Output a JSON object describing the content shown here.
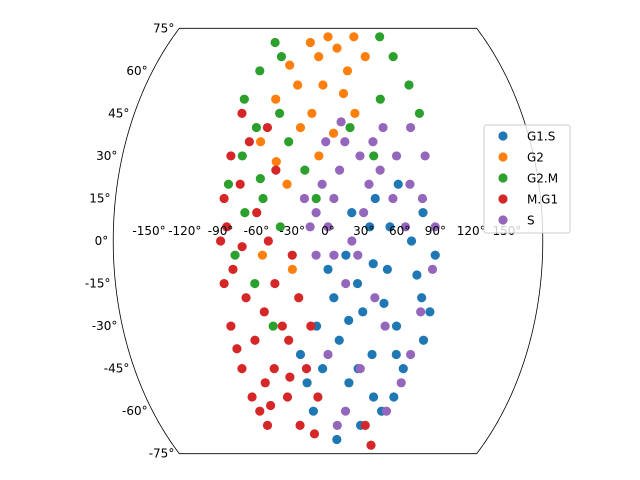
{
  "chart_data": {
    "type": "scatter",
    "projection": "kavrayskiy-vii",
    "title": "",
    "xlabel": "",
    "ylabel": "",
    "xlim": [
      -180,
      180
    ],
    "ylim": [
      -75,
      75
    ],
    "grid": false,
    "legend_position": "top-right",
    "x_tick_labels": [
      "-150°",
      "-120°",
      "-90°",
      "-60°",
      "-30°",
      "0°",
      "30°",
      "60°",
      "90°",
      "120°",
      "150°"
    ],
    "y_tick_labels": [
      "75°",
      "60°",
      "45°",
      "30°",
      "15°",
      "0°",
      "-15°",
      "-30°",
      "-45°",
      "-60°",
      "-75°"
    ],
    "series": [
      {
        "name": "G1.S",
        "color": "#1f77b4",
        "points": [
          [
            5,
            -20
          ],
          [
            10,
            -35
          ],
          [
            20,
            -50
          ],
          [
            30,
            -25
          ],
          [
            40,
            -40
          ],
          [
            50,
            -10
          ],
          [
            60,
            -30
          ],
          [
            70,
            -45
          ],
          [
            80,
            -20
          ],
          [
            85,
            -35
          ],
          [
            15,
            -5
          ],
          [
            25,
            -15
          ],
          [
            35,
            5
          ],
          [
            45,
            -55
          ],
          [
            55,
            -60
          ],
          [
            -5,
            -45
          ],
          [
            -15,
            -60
          ],
          [
            -25,
            -40
          ],
          [
            0,
            -10
          ],
          [
            20,
            10
          ],
          [
            40,
            15
          ],
          [
            60,
            20
          ],
          [
            70,
            0
          ],
          [
            80,
            10
          ],
          [
            90,
            -5
          ],
          [
            65,
            -55
          ],
          [
            35,
            -65
          ],
          [
            10,
            -70
          ],
          [
            -10,
            -30
          ],
          [
            28,
            -45
          ],
          [
            48,
            -22
          ],
          [
            75,
            -12
          ],
          [
            52,
            5
          ],
          [
            18,
            -28
          ],
          [
            -20,
            -50
          ],
          [
            62,
            -40
          ],
          [
            38,
            -8
          ],
          [
            88,
            -25
          ]
        ]
      },
      {
        "name": "G2",
        "color": "#ff7f0e",
        "points": [
          [
            -20,
            70
          ],
          [
            -10,
            65
          ],
          [
            0,
            72
          ],
          [
            10,
            68
          ],
          [
            20,
            60
          ],
          [
            -30,
            55
          ],
          [
            -40,
            62
          ],
          [
            -50,
            50
          ],
          [
            30,
            72
          ],
          [
            40,
            65
          ],
          [
            -15,
            45
          ],
          [
            -5,
            55
          ],
          [
            15,
            52
          ],
          [
            -25,
            40
          ],
          [
            5,
            38
          ],
          [
            -60,
            35
          ],
          [
            -45,
            28
          ],
          [
            -35,
            20
          ],
          [
            -55,
            -5
          ],
          [
            -30,
            -10
          ],
          [
            25,
            45
          ],
          [
            -8,
            30
          ]
        ]
      },
      {
        "name": "G2.M",
        "color": "#2ca02c",
        "points": [
          [
            -60,
            70
          ],
          [
            -70,
            60
          ],
          [
            -80,
            50
          ],
          [
            -65,
            40
          ],
          [
            -50,
            65
          ],
          [
            60,
            72
          ],
          [
            70,
            65
          ],
          [
            80,
            55
          ],
          [
            85,
            45
          ],
          [
            -75,
            30
          ],
          [
            -85,
            20
          ],
          [
            -70,
            10
          ],
          [
            -55,
            15
          ],
          [
            -40,
            5
          ],
          [
            -45,
            45
          ],
          [
            -35,
            35
          ],
          [
            -20,
            25
          ],
          [
            20,
            40
          ],
          [
            40,
            30
          ],
          [
            50,
            50
          ],
          [
            -10,
            15
          ],
          [
            -62,
            -15
          ],
          [
            -48,
            -30
          ],
          [
            -58,
            22
          ],
          [
            -78,
            -5
          ]
        ]
      },
      {
        "name": "M.G1",
        "color": "#d62728",
        "points": [
          [
            -90,
            0
          ],
          [
            -88,
            15
          ],
          [
            -88,
            -15
          ],
          [
            -85,
            30
          ],
          [
            -85,
            -30
          ],
          [
            -80,
            45
          ],
          [
            -80,
            -45
          ],
          [
            -75,
            -55
          ],
          [
            -70,
            -60
          ],
          [
            -65,
            -65
          ],
          [
            -85,
            5
          ],
          [
            -80,
            -10
          ],
          [
            -75,
            20
          ],
          [
            -70,
            -20
          ],
          [
            -65,
            -35
          ],
          [
            -60,
            -50
          ],
          [
            -55,
            -25
          ],
          [
            -50,
            -45
          ],
          [
            -45,
            -15
          ],
          [
            -40,
            -55
          ],
          [
            -35,
            -35
          ],
          [
            -30,
            -65
          ],
          [
            -25,
            -20
          ],
          [
            -20,
            -45
          ],
          [
            -15,
            -30
          ],
          [
            -10,
            -55
          ],
          [
            -60,
            10
          ],
          [
            -50,
            0
          ],
          [
            -55,
            40
          ],
          [
            -45,
            25
          ],
          [
            -70,
            35
          ],
          [
            -40,
            -30
          ],
          [
            -30,
            -5
          ],
          [
            40,
            -65
          ],
          [
            50,
            -72
          ],
          [
            -15,
            -68
          ],
          [
            -82,
            -38
          ],
          [
            -72,
            -2
          ],
          [
            -58,
            -58
          ],
          [
            -36,
            -48
          ]
        ]
      },
      {
        "name": "S",
        "color": "#9467bd",
        "points": [
          [
            0,
            5
          ],
          [
            5,
            15
          ],
          [
            10,
            25
          ],
          [
            15,
            35
          ],
          [
            -5,
            20
          ],
          [
            -10,
            10
          ],
          [
            20,
            0
          ],
          [
            25,
            -5
          ],
          [
            30,
            10
          ],
          [
            35,
            20
          ],
          [
            40,
            35
          ],
          [
            45,
            25
          ],
          [
            50,
            40
          ],
          [
            55,
            15
          ],
          [
            60,
            30
          ],
          [
            65,
            5
          ],
          [
            70,
            20
          ],
          [
            75,
            40
          ],
          [
            80,
            15
          ],
          [
            85,
            30
          ],
          [
            90,
            5
          ],
          [
            88,
            -10
          ],
          [
            80,
            -25
          ],
          [
            75,
            -40
          ],
          [
            70,
            -50
          ],
          [
            60,
            -60
          ],
          [
            10,
            -65
          ],
          [
            0,
            -40
          ],
          [
            -15,
            5
          ],
          [
            -20,
            15
          ],
          [
            5,
            -5
          ],
          [
            15,
            -15
          ],
          [
            50,
            -30
          ],
          [
            30,
            -45
          ],
          [
            40,
            -20
          ],
          [
            -10,
            -5
          ],
          [
            12,
            42
          ],
          [
            28,
            30
          ],
          [
            -2,
            35
          ],
          [
            18,
            -60
          ]
        ]
      }
    ]
  }
}
